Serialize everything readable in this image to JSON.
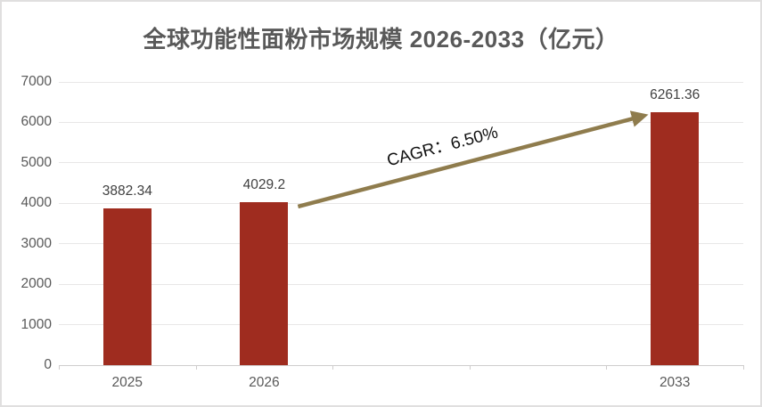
{
  "chart_data": {
    "type": "bar",
    "title": "全球功能性面粉市场规模 2026-2033（亿元）",
    "categories": [
      "2025",
      "2026",
      "",
      "",
      "2033"
    ],
    "values": [
      3882.34,
      4029.2,
      null,
      null,
      6261.36
    ],
    "data_labels": [
      "3882.34",
      "4029.2",
      "",
      "",
      "6261.36"
    ],
    "xlabel": "",
    "ylabel": "",
    "ylim": [
      0,
      7000
    ],
    "yticks": [
      0,
      1000,
      2000,
      3000,
      4000,
      5000,
      6000,
      7000
    ],
    "grid": true,
    "legend": false,
    "annotation": {
      "text": "CAGR：6.50%",
      "from_category": "2026",
      "to_category": "2033"
    },
    "colors": {
      "bar": "#9F2C1F",
      "arrow": "#8F7C4D",
      "title_text": "#595959",
      "axis_text": "#595959",
      "data_label_text": "#404040",
      "annotation_text": "#111111",
      "gridline": "#E8E7E7",
      "axis_line": "#CFCDCD",
      "background": "#FFFFFF",
      "frame_border": "#E0DFDF"
    }
  }
}
